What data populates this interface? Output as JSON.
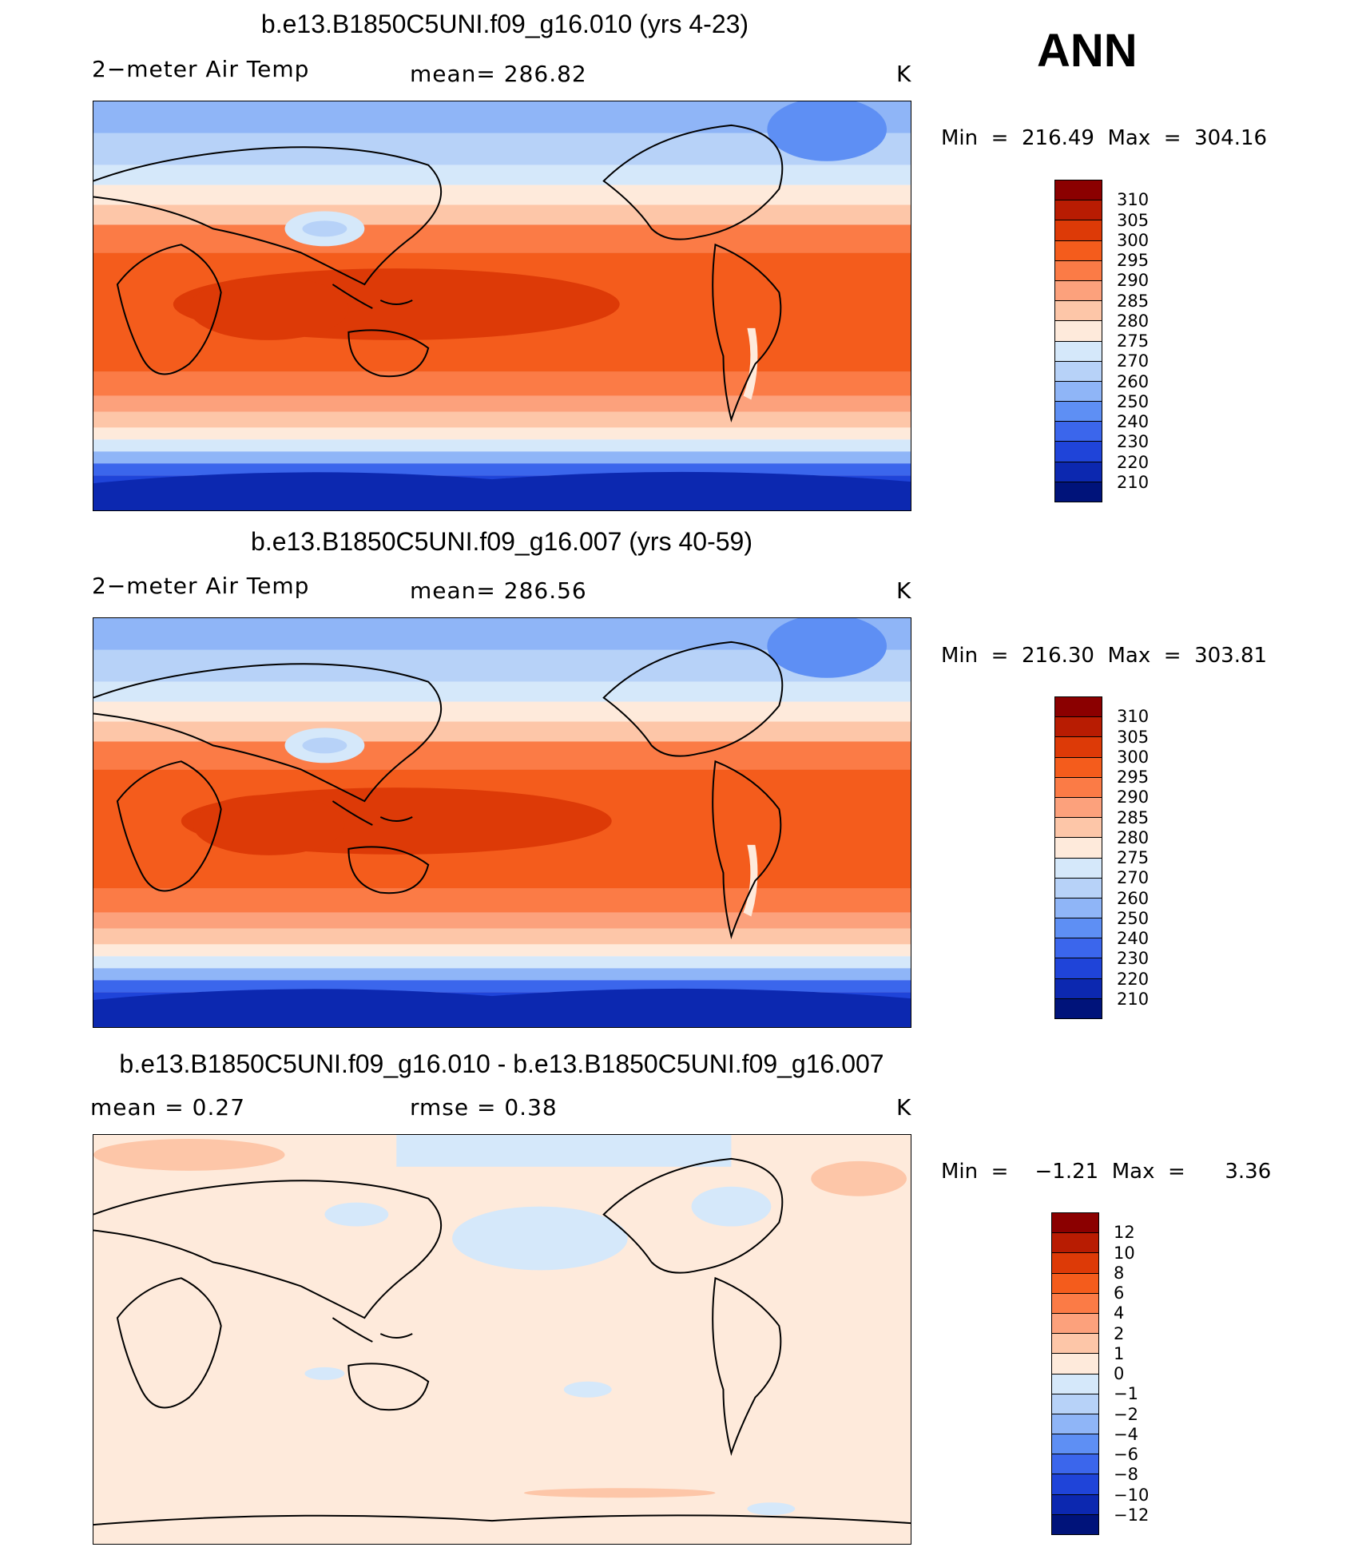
{
  "season_label": "ANN",
  "panels": [
    {
      "title": "b.e13.B1850C5UNI.f09_g16.010 (yrs 4-23)",
      "variable_label": "2−meter Air Temp",
      "stat_left": "mean= 286.82",
      "stat_right": "",
      "units": "K",
      "minmax": "Min  =  216.49  Max  =  304.16",
      "colorbar_id": "abs"
    },
    {
      "title": "b.e13.B1850C5UNI.f09_g16.007 (yrs 40-59)",
      "variable_label": "2−meter Air Temp",
      "stat_left": "mean= 286.56",
      "stat_right": "",
      "units": "K",
      "minmax": "Min  =  216.30  Max  =  303.81",
      "colorbar_id": "abs"
    },
    {
      "title": "b.e13.B1850C5UNI.f09_g16.010 - b.e13.B1850C5UNI.f09_g16.007",
      "variable_label": "mean  =     0.27",
      "stat_left": "rmse  =     0.38",
      "stat_right": "",
      "units": "K",
      "minmax": "Min  =    −1.21  Max  =      3.36",
      "colorbar_id": "diff"
    }
  ],
  "colorbars": {
    "abs": {
      "levels": [
        "310",
        "305",
        "300",
        "295",
        "290",
        "285",
        "280",
        "275",
        "270",
        "260",
        "250",
        "240",
        "230",
        "220",
        "210"
      ],
      "colors": [
        "#8b0000",
        "#b81c02",
        "#dd3a07",
        "#f45c1c",
        "#fb7b46",
        "#fca17c",
        "#fdc6a8",
        "#feeadb",
        "#d5e8fa",
        "#b7d2f8",
        "#8fb5f7",
        "#5e8ff4",
        "#3b66ec",
        "#1f44d9",
        "#0c28b0",
        "#00137a"
      ]
    },
    "diff": {
      "levels": [
        "12",
        "10",
        "8",
        "6",
        "4",
        "2",
        "1",
        "0",
        "−1",
        "−2",
        "−4",
        "−6",
        "−8",
        "−10",
        "−12"
      ],
      "colors": [
        "#8b0000",
        "#b81c02",
        "#dd3a07",
        "#f45c1c",
        "#fb7b46",
        "#fca17c",
        "#fdc6a8",
        "#feeadb",
        "#d5e8fa",
        "#b7d2f8",
        "#8fb5f7",
        "#5e8ff4",
        "#3b66ec",
        "#1f44d9",
        "#0c28b0",
        "#00137a"
      ]
    }
  },
  "map_palette": {
    "ocean_bg": "#f45c1c",
    "land_line": "#000000"
  }
}
